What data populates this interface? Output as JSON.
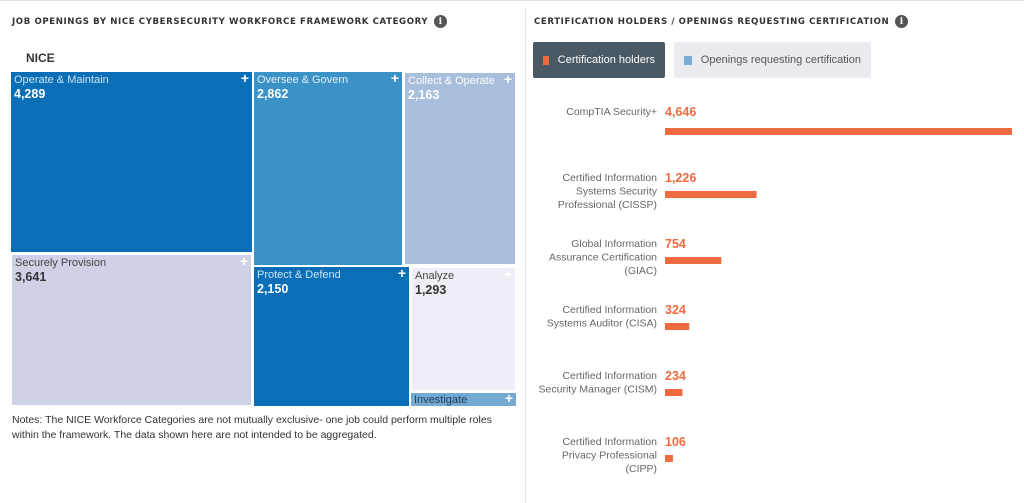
{
  "colors": {
    "operate": "#0a6fb6",
    "oversee": "#3a92c6",
    "collect": "#a7bedd",
    "securely": "#cfd1e6",
    "protect": "#0a6fb6",
    "analyze": "#efedf6",
    "investigate": "#74a9d2",
    "holders": "#ef6a3f",
    "openings": "#7aaed6",
    "active_btn": "#4a5964",
    "inactive_btn": "#e9ebee"
  },
  "left": {
    "title": "JOB OPENINGS BY NICE CYBERSECURITY WORKFORCE FRAMEWORK CATEGORY",
    "treemap_label": "NICE",
    "notes": "Notes: The NICE Workforce Categories are not mutually exclusive- one job could perform multiple roles within the framework. The data shown here are not intended to be aggregated."
  },
  "right": {
    "title": "CERTIFICATION HOLDERS / OPENINGS REQUESTING CERTIFICATION",
    "legend": {
      "holders_label": "Certification holders",
      "openings_label": "Openings requesting certification"
    }
  },
  "chart_data": [
    {
      "type": "treemap",
      "title": "JOB OPENINGS BY NICE CYBERSECURITY WORKFORCE FRAMEWORK CATEGORY",
      "root": "NICE",
      "categories": [
        "Operate & Maintain",
        "Oversee & Govern",
        "Collect & Operate",
        "Securely Provision",
        "Protect & Defend",
        "Analyze",
        "Investigate"
      ],
      "values": [
        4289,
        2862,
        2163,
        3641,
        2150,
        1293,
        null
      ],
      "value_labels": [
        "4,289",
        "2,862",
        "2,163",
        "3,641",
        "2,150",
        "1,293",
        ""
      ]
    },
    {
      "type": "bar",
      "orientation": "horizontal",
      "title": "CERTIFICATION HOLDERS / OPENINGS REQUESTING CERTIFICATION",
      "categories": [
        "CompTIA Security+",
        "Certified Information Systems Security Professional (CISSP)",
        "Global Information Assurance Certification (GIAC)",
        "Certified Information Systems Auditor (CISA)",
        "Certified Information Security Manager (CISM)",
        "Certified Information Privacy Professional (CIPP)"
      ],
      "label_lines": [
        [
          "CompTIA Security+"
        ],
        [
          "Certified Information",
          "Systems Security",
          "Professional (CISSP)"
        ],
        [
          "Global Information",
          "Assurance Certification",
          "(GIAC)"
        ],
        [
          "Certified Information",
          "Systems Auditor (CISA)"
        ],
        [
          "Certified Information",
          "Security Manager (CISM)"
        ],
        [
          "Certified Information",
          "Privacy Professional",
          "(CIPP)"
        ]
      ],
      "series": [
        {
          "name": "Certification holders",
          "values": [
            4646,
            1226,
            754,
            324,
            234,
            106
          ],
          "value_labels": [
            "4,646",
            "1,226",
            "754",
            "324",
            "234",
            "106"
          ]
        }
      ],
      "xlim": [
        0,
        4646
      ]
    }
  ]
}
